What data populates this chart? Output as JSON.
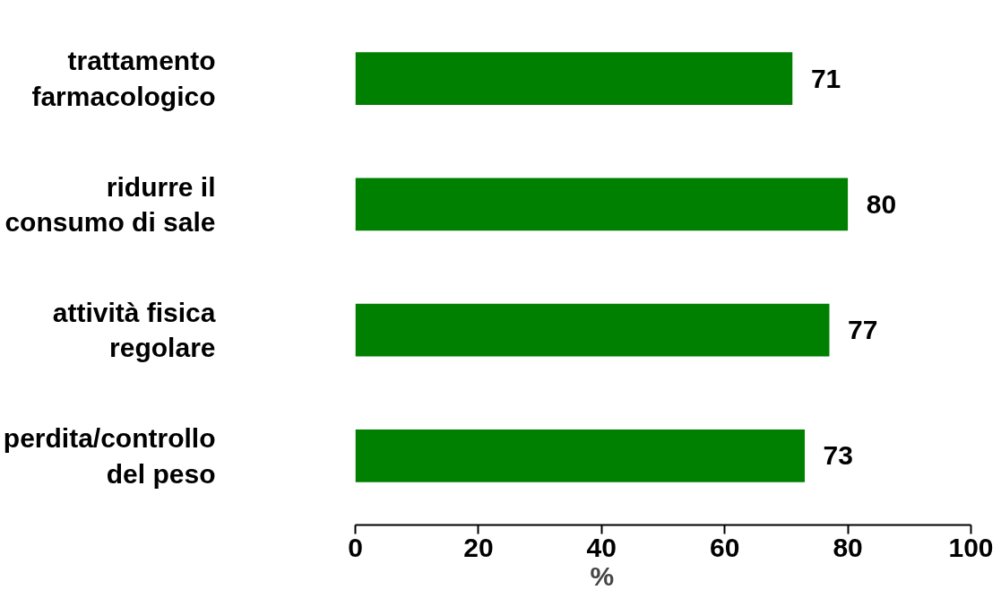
{
  "chart_data": {
    "type": "bar",
    "orientation": "horizontal",
    "categories": [
      "trattamento\nfarmacologico",
      "ridurre il\nconsumo di sale",
      "attività fisica\nregolare",
      "perdita/controllo\ndel peso"
    ],
    "values": [
      71,
      80,
      77,
      73
    ],
    "color": "#008000",
    "xlim": [
      0,
      100
    ],
    "xticks": [
      0,
      20,
      40,
      60,
      80,
      100
    ],
    "xlabel": "%",
    "data_labels": true,
    "grid": false
  }
}
